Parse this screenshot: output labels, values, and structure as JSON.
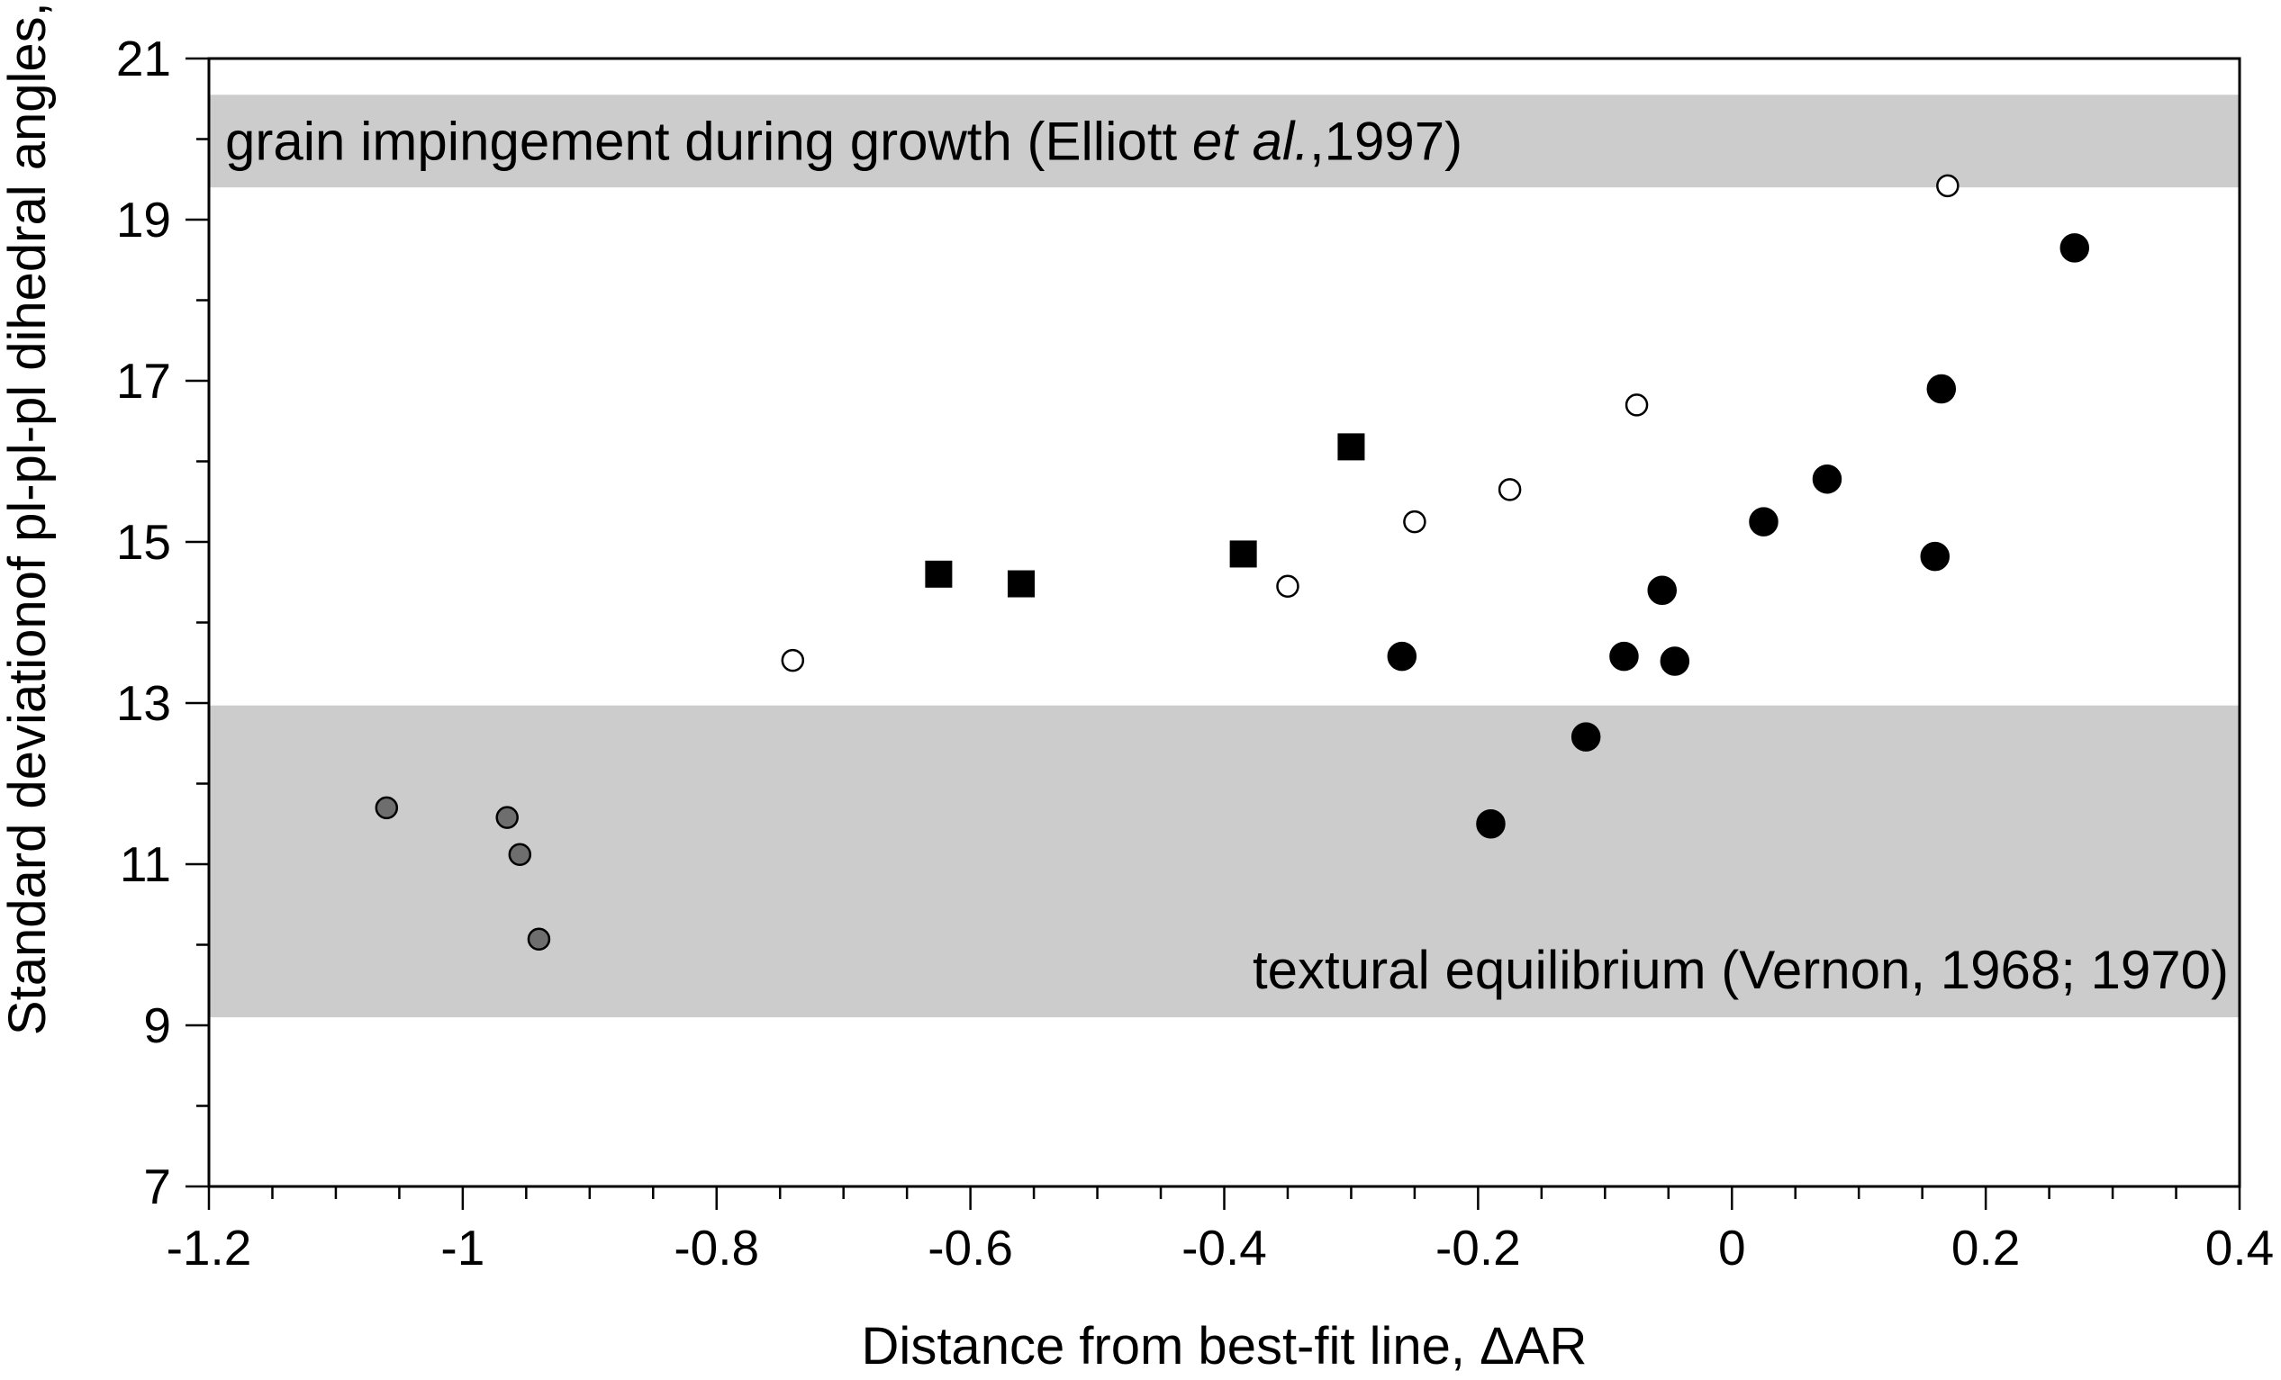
{
  "chart_data": {
    "type": "scatter",
    "title": "",
    "xlabel": "Distance from best-fit line, ΔAR",
    "ylabel": "Standard deviationof pl-pl-pl dihedral angles, °",
    "xlim": [
      -1.2,
      0.4
    ],
    "ylim": [
      7,
      21
    ],
    "x_ticks": [
      -1.2,
      -1,
      -0.8,
      -0.6,
      -0.4,
      -0.2,
      0,
      0.2,
      0.4
    ],
    "x_tick_labels": [
      "-1.2",
      "-1",
      "-0.8",
      "-0.6",
      "-0.4",
      "-0.2",
      "0",
      "0.2",
      "0.4"
    ],
    "y_ticks": [
      7,
      9,
      11,
      13,
      15,
      17,
      19,
      21
    ],
    "y_tick_labels": [
      "7",
      "9",
      "11",
      "13",
      "15",
      "17",
      "19",
      "21"
    ],
    "x_minor_step": 0.05,
    "y_minor_step": 1,
    "grid": false,
    "legend": "none",
    "bands": [
      {
        "y_from": 19.4,
        "y_to": 20.55,
        "color": "#cccccc",
        "label_parts": [
          "grain impingement during growth (Elliott ",
          "et al.",
          ",1997)"
        ],
        "label_italic": [
          false,
          true,
          false
        ],
        "label_align": "left"
      },
      {
        "y_from": 9.1,
        "y_to": 12.97,
        "color": "#cccccc",
        "label_parts": [
          "textural equilibrium (Vernon, 1968; 1970)"
        ],
        "label_italic": [
          false
        ],
        "label_align": "right"
      }
    ],
    "series": [
      {
        "marker": "circle",
        "fill": "#000000",
        "size": "large",
        "points": [
          [
            0.27,
            18.65
          ],
          [
            0.165,
            16.9
          ],
          [
            0.075,
            15.78
          ],
          [
            0.025,
            15.25
          ],
          [
            0.16,
            14.82
          ],
          [
            -0.055,
            14.4
          ],
          [
            -0.085,
            13.58
          ],
          [
            -0.045,
            13.52
          ],
          [
            -0.26,
            13.58
          ],
          [
            -0.115,
            12.58
          ],
          [
            -0.19,
            11.5
          ]
        ]
      },
      {
        "marker": "circle",
        "fill": "#ffffff",
        "size": "small",
        "points": [
          [
            0.17,
            19.42
          ],
          [
            -0.075,
            16.7
          ],
          [
            -0.175,
            15.65
          ],
          [
            -0.25,
            15.25
          ],
          [
            -0.35,
            14.45
          ],
          [
            -0.74,
            13.53
          ]
        ]
      },
      {
        "marker": "square",
        "fill": "#000000",
        "size": "large",
        "points": [
          [
            -0.3,
            16.18
          ],
          [
            -0.385,
            14.85
          ],
          [
            -0.625,
            14.6
          ],
          [
            -0.56,
            14.48
          ]
        ]
      },
      {
        "marker": "circle",
        "fill": "#6e6e6e",
        "size": "small",
        "points": [
          [
            -1.06,
            11.7
          ],
          [
            -0.965,
            11.58
          ],
          [
            -0.955,
            11.12
          ],
          [
            -0.94,
            10.07
          ]
        ]
      }
    ]
  }
}
